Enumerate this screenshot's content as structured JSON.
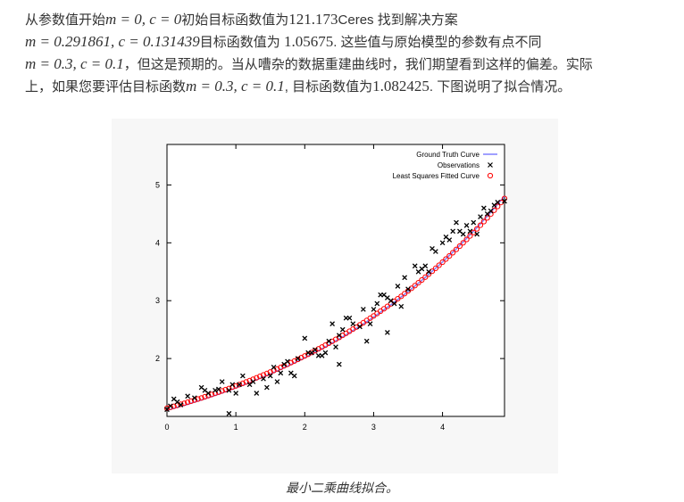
{
  "paragraph": {
    "line1": {
      "t1": "从参数值开始",
      "m1": "m = 0, c = 0",
      "t2": "初始目标函数值为",
      "v1": "121.173",
      "t3": "Ceres 找到解决方案"
    },
    "line2": {
      "m1": "m = 0.291861, c = 0.131439",
      "t1": "目标函数值为 ",
      "v1": "1.05675",
      "t2": ". 这些值与原始模型的参数有点不同"
    },
    "line3": {
      "m1": "m = 0.3, c = 0.1",
      "t1": "，但这是预期的。当从嘈杂的数据重建曲线时，我们期望看到这样的偏差。实际"
    },
    "line4": {
      "t1": "上，如果您要评估目标函数",
      "m1": "m = 0.3, c = 0.1",
      "t2": ", 目标函数值为",
      "v1": "1.082425",
      "t3": ". 下图说明了拟合情况。"
    }
  },
  "caption": "最小二乘曲线拟合。",
  "chart_data": {
    "type": "scatter",
    "title": "",
    "xlabel": "",
    "ylabel": "",
    "xlim": [
      0,
      4.9
    ],
    "ylim": [
      1,
      5.7
    ],
    "xticks": [
      0,
      1,
      2,
      3,
      4
    ],
    "yticks": [
      2,
      3,
      4,
      5
    ],
    "legend_position": "top-right",
    "grid": false,
    "series": [
      {
        "name": "Ground Truth Curve",
        "kind": "line",
        "color": "#8080ff",
        "function": "exp(0.3*x + 0.1)"
      },
      {
        "name": "Observations",
        "kind": "cross",
        "color": "#000000",
        "x": [
          0.0,
          0.1,
          0.2,
          0.3,
          0.4,
          0.5,
          0.6,
          0.7,
          0.8,
          0.9,
          1.0,
          1.1,
          1.2,
          1.3,
          1.4,
          1.5,
          1.6,
          1.7,
          1.8,
          1.9,
          2.0,
          2.1,
          2.2,
          2.3,
          2.4,
          2.5,
          2.6,
          2.7,
          2.8,
          2.9,
          3.0,
          3.1,
          3.2,
          3.3,
          3.4,
          3.5,
          3.6,
          3.7,
          3.8,
          3.9,
          4.0,
          4.1,
          4.2,
          4.3,
          4.4,
          4.5,
          4.6,
          4.7,
          4.8,
          4.9,
          0.05,
          0.15,
          0.55,
          0.75,
          0.95,
          1.25,
          1.45,
          1.65,
          1.85,
          2.05,
          2.25,
          2.45,
          2.65,
          2.85,
          3.05,
          3.15,
          3.25,
          3.45,
          3.65,
          3.85,
          4.05,
          4.25,
          4.45,
          4.65,
          0.9,
          1.05,
          1.55,
          1.75,
          2.15,
          2.35,
          2.55,
          2.95,
          3.35,
          3.75,
          4.15,
          4.35,
          4.55,
          4.75,
          2.5,
          3.2
        ],
        "y": [
          1.12,
          1.3,
          1.2,
          1.35,
          1.32,
          1.5,
          1.4,
          1.45,
          1.6,
          1.05,
          1.4,
          1.7,
          1.55,
          1.4,
          1.65,
          1.7,
          1.6,
          1.9,
          1.75,
          2.0,
          2.35,
          2.1,
          2.05,
          2.1,
          2.6,
          2.4,
          2.7,
          2.6,
          2.55,
          2.3,
          2.85,
          3.1,
          2.45,
          2.95,
          2.9,
          3.2,
          3.6,
          3.55,
          3.5,
          3.85,
          4.0,
          4.05,
          4.35,
          4.15,
          4.2,
          4.15,
          4.6,
          4.55,
          4.7,
          4.72,
          1.18,
          1.25,
          1.45,
          1.47,
          1.55,
          1.6,
          1.5,
          1.75,
          1.7,
          2.1,
          2.05,
          2.2,
          2.7,
          2.85,
          2.95,
          3.1,
          3.0,
          3.4,
          3.5,
          3.9,
          4.1,
          4.2,
          4.35,
          4.5,
          1.45,
          1.55,
          1.85,
          1.95,
          2.15,
          2.3,
          2.5,
          2.6,
          3.25,
          3.6,
          4.2,
          4.3,
          4.45,
          4.65,
          1.9,
          3.05
        ]
      },
      {
        "name": "Least Squares Fitted Curve",
        "kind": "circle",
        "color": "#ff0000",
        "function": "exp(0.291861*x + 0.131439)"
      }
    ]
  }
}
